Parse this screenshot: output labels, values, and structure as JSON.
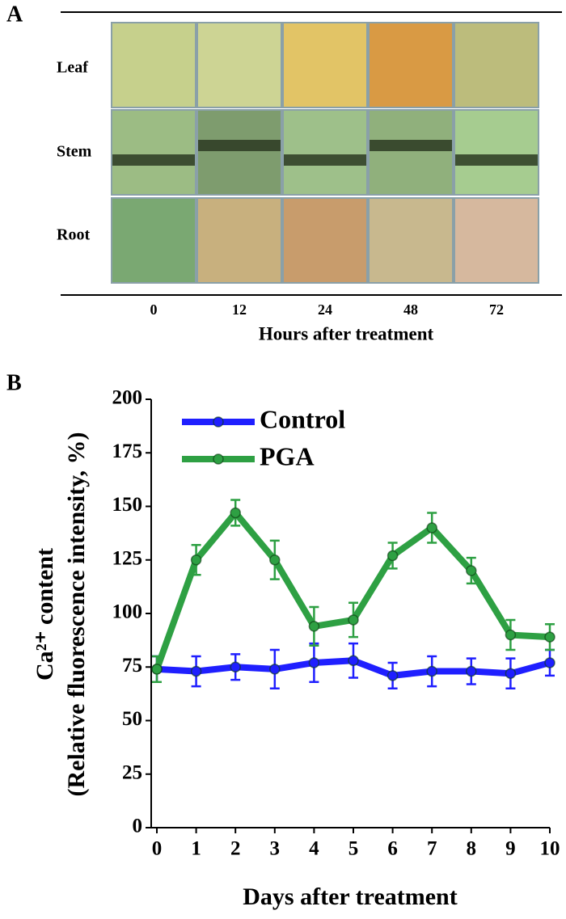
{
  "panel_a": {
    "label": "A",
    "rows": [
      "Leaf",
      "Stem",
      "Root"
    ],
    "columns": [
      "0",
      "12",
      "24",
      "48",
      "72"
    ],
    "xlabel": "Hours after treatment"
  },
  "chart_data": {
    "type": "line",
    "panel_label": "B",
    "xlabel": "Days after treatment",
    "ylabel": [
      "Ca²⁺ content",
      "(Relative fluorescence intensity, %)"
    ],
    "x": [
      0,
      1,
      2,
      3,
      4,
      5,
      6,
      7,
      8,
      9,
      10
    ],
    "xlim": [
      0,
      10
    ],
    "xticks": [
      0,
      1,
      2,
      3,
      4,
      5,
      6,
      7,
      8,
      9,
      10
    ],
    "ylim": [
      0,
      200
    ],
    "yticks": [
      0,
      25,
      50,
      75,
      100,
      125,
      150,
      175,
      200
    ],
    "legend": "upper left",
    "series": [
      {
        "name": "Control",
        "color": "#1f1fff",
        "values": [
          74,
          73,
          75,
          74,
          77,
          78,
          71,
          73,
          73,
          72,
          77
        ],
        "errors": [
          6,
          7,
          6,
          9,
          9,
          8,
          6,
          7,
          6,
          7,
          6
        ]
      },
      {
        "name": "PGA",
        "color": "#2ea043",
        "values": [
          74,
          125,
          147,
          125,
          94,
          97,
          127,
          140,
          120,
          90,
          89
        ],
        "errors": [
          6,
          7,
          6,
          9,
          9,
          8,
          6,
          7,
          6,
          7,
          6
        ]
      }
    ]
  }
}
